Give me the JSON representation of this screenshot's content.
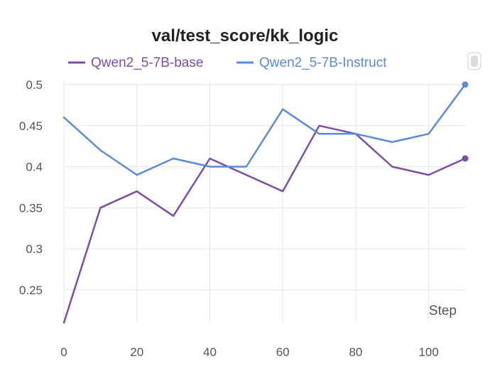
{
  "chart_data": {
    "type": "line",
    "title": "val/test_score/kk_logic",
    "xlabel": "Step",
    "ylabel": "",
    "x": [
      0,
      10,
      20,
      30,
      40,
      50,
      60,
      70,
      80,
      90,
      100,
      110
    ],
    "xlim": [
      0,
      110
    ],
    "ylim": [
      0.21,
      0.5
    ],
    "x_ticks": [
      0,
      20,
      40,
      60,
      80,
      100
    ],
    "y_ticks": [
      0.25,
      0.3,
      0.35,
      0.4,
      0.45,
      0.5
    ],
    "x_tick_labels": [
      "0",
      "20",
      "40",
      "60",
      "80",
      "100"
    ],
    "y_tick_labels": [
      "0.25",
      "0.3",
      "0.35",
      "0.4",
      "0.45",
      "0.5"
    ],
    "grid": true,
    "legend_position": "top",
    "series": [
      {
        "name": "Qwen2_5-7B-base",
        "color": "#7b4fa6",
        "values": [
          0.21,
          0.35,
          0.37,
          0.34,
          0.41,
          0.39,
          0.37,
          0.45,
          0.44,
          0.4,
          0.39,
          0.41
        ]
      },
      {
        "name": "Qwen2_5-7B-Instruct",
        "color": "#5b8bd6",
        "values": [
          0.46,
          0.42,
          0.39,
          0.41,
          0.4,
          0.4,
          0.47,
          0.44,
          0.44,
          0.43,
          0.44,
          0.5
        ]
      }
    ]
  }
}
